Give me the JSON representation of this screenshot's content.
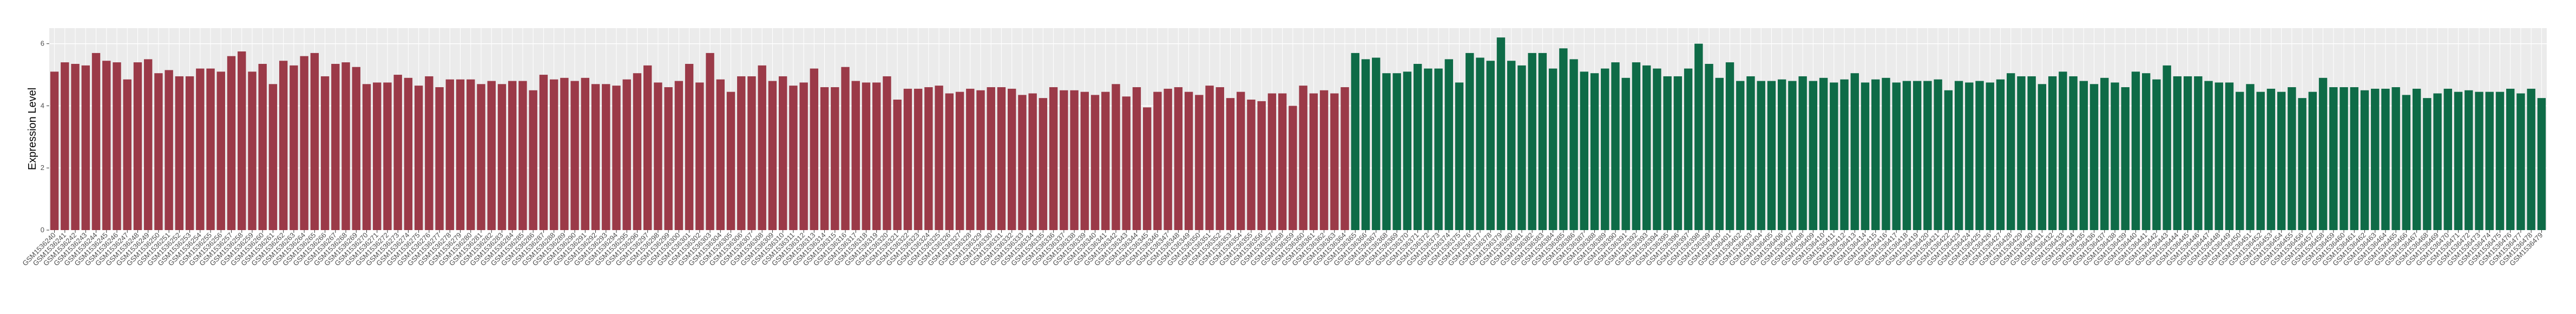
{
  "chart_data": {
    "type": "bar",
    "y_label": "Expression Level",
    "ylim": [
      0,
      6.5
    ],
    "yticks": [
      0,
      2,
      4,
      6
    ],
    "grid": true,
    "categories": [
      "GSM1536240",
      "GSM1536241",
      "GSM1536242",
      "GSM1536243",
      "GSM1536244",
      "GSM1536245",
      "GSM1536246",
      "GSM1536247",
      "GSM1536248",
      "GSM1536249",
      "GSM1536250",
      "GSM1536251",
      "GSM1536252",
      "GSM1536253",
      "GSM1536254",
      "GSM1536255",
      "GSM1536256",
      "GSM1536257",
      "GSM1536258",
      "GSM1536259",
      "GSM1536260",
      "GSM1536261",
      "GSM1536262",
      "GSM1536263",
      "GSM1536264",
      "GSM1536265",
      "GSM1536266",
      "GSM1536267",
      "GSM1536268",
      "GSM1536269",
      "GSM1536270",
      "GSM1536271",
      "GSM1536272",
      "GSM1536273",
      "GSM1536274",
      "GSM1536275",
      "GSM1536276",
      "GSM1536277",
      "GSM1536278",
      "GSM1536279",
      "GSM1536280",
      "GSM1536281",
      "GSM1536282",
      "GSM1536283",
      "GSM1536284",
      "GSM1536285",
      "GSM1536286",
      "GSM1536287",
      "GSM1536288",
      "GSM1536289",
      "GSM1536290",
      "GSM1536291",
      "GSM1536292",
      "GSM1536293",
      "GSM1536294",
      "GSM1536295",
      "GSM1536296",
      "GSM1536297",
      "GSM1536298",
      "GSM1536299",
      "GSM1536300",
      "GSM1536301",
      "GSM1536302",
      "GSM1536303",
      "GSM1536304",
      "GSM1536305",
      "GSM1536306",
      "GSM1536307",
      "GSM1536308",
      "GSM1536309",
      "GSM1536310",
      "GSM1536311",
      "GSM1536312",
      "GSM1536313",
      "GSM1536314",
      "GSM1536315",
      "GSM1536316",
      "GSM1536317",
      "GSM1536318",
      "GSM1536319",
      "GSM1536320",
      "GSM1536321",
      "GSM1536322",
      "GSM1536323",
      "GSM1536324",
      "GSM1536325",
      "GSM1536326",
      "GSM1536327",
      "GSM1536328",
      "GSM1536329",
      "GSM1536330",
      "GSM1536331",
      "GSM1536332",
      "GSM1536333",
      "GSM1536334",
      "GSM1536335",
      "GSM1536336",
      "GSM1536337",
      "GSM1536338",
      "GSM1536339",
      "GSM1536340",
      "GSM1536341",
      "GSM1536342",
      "GSM1536343",
      "GSM1536344",
      "GSM1536345",
      "GSM1536346",
      "GSM1536347",
      "GSM1536348",
      "GSM1536349",
      "GSM1536350",
      "GSM1536351",
      "GSM1536352",
      "GSM1536353",
      "GSM1536354",
      "GSM1536355",
      "GSM1536356",
      "GSM1536357",
      "GSM1536358",
      "GSM1536359",
      "GSM1536360",
      "GSM1536361",
      "GSM1536362",
      "GSM1536363",
      "GSM1536364",
      "GSM1536365",
      "GSM1536366",
      "GSM1536367",
      "GSM1536368",
      "GSM1536369",
      "GSM1536370",
      "GSM1536371",
      "GSM1536372",
      "GSM1536373",
      "GSM1536374",
      "GSM1536375",
      "GSM1536376",
      "GSM1536377",
      "GSM1536378",
      "GSM1536379",
      "GSM1536380",
      "GSM1536381",
      "GSM1536382",
      "GSM1536383",
      "GSM1536384",
      "GSM1536385",
      "GSM1536386",
      "GSM1536387",
      "GSM1536388",
      "GSM1536389",
      "GSM1536390",
      "GSM1536391",
      "GSM1536392",
      "GSM1536393",
      "GSM1536394",
      "GSM1536395",
      "GSM1536396",
      "GSM1536397",
      "GSM1536398",
      "GSM1536399",
      "GSM1536400",
      "GSM1536401",
      "GSM1536402",
      "GSM1536403",
      "GSM1536404",
      "GSM1536405",
      "GSM1536406",
      "GSM1536407",
      "GSM1536408",
      "GSM1536409",
      "GSM1536410",
      "GSM1536411",
      "GSM1536412",
      "GSM1536413",
      "GSM1536414",
      "GSM1536415",
      "GSM1536416",
      "GSM1536417",
      "GSM1536418",
      "GSM1536419",
      "GSM1536420",
      "GSM1536421",
      "GSM1536422",
      "GSM1536423",
      "GSM1536424",
      "GSM1536425",
      "GSM1536426",
      "GSM1536427",
      "GSM1536428",
      "GSM1536429",
      "GSM1536430",
      "GSM1536431",
      "GSM1536432",
      "GSM1536433",
      "GSM1536434",
      "GSM1536435",
      "GSM1536436",
      "GSM1536437",
      "GSM1536438",
      "GSM1536439",
      "GSM1536440",
      "GSM1536441",
      "GSM1536442",
      "GSM1536443",
      "GSM1536444",
      "GSM1536445",
      "GSM1536446",
      "GSM1536447",
      "GSM1536448",
      "GSM1536449",
      "GSM1536450",
      "GSM1536451",
      "GSM1536452",
      "GSM1536453",
      "GSM1536454",
      "GSM1536455",
      "GSM1536456",
      "GSM1536457",
      "GSM1536458",
      "GSM1536459",
      "GSM1536460",
      "GSM1536461",
      "GSM1536462",
      "GSM1536463",
      "GSM1536464",
      "GSM1536465",
      "GSM1536466",
      "GSM1536467",
      "GSM1536468",
      "GSM1536469",
      "GSM1536470",
      "GSM1536471",
      "GSM1536472",
      "GSM1536473",
      "GSM1536474",
      "GSM1536475",
      "GSM1536476",
      "GSM1536477",
      "GSM1536478",
      "GSM1536479"
    ],
    "series": [
      {
        "color": "#9b3a48",
        "values": [
          5.1,
          5.4,
          5.35,
          5.3,
          5.7,
          5.45,
          5.4,
          4.85,
          5.4,
          5.5,
          5.05,
          5.15,
          4.95,
          4.95,
          5.2,
          5.2,
          5.1,
          5.6,
          5.75,
          5.1,
          5.35,
          4.7,
          5.45,
          5.3,
          5.6,
          5.7,
          4.95,
          5.35,
          5.4,
          5.25,
          4.7,
          4.75,
          4.75,
          5.0,
          4.9,
          4.65,
          4.95,
          4.6,
          4.85,
          4.85,
          4.85,
          4.7,
          4.8,
          4.7,
          4.8,
          4.8,
          4.5,
          5.0,
          4.85,
          4.9,
          4.8,
          4.9,
          4.7,
          4.7,
          4.65,
          4.85,
          5.05,
          5.3,
          4.75,
          4.6,
          4.8,
          5.35,
          4.75,
          5.7,
          4.85,
          4.45,
          4.95,
          4.95,
          5.3,
          4.8,
          4.95,
          4.65,
          4.75,
          5.2,
          4.6,
          4.6,
          5.25,
          4.8,
          4.75,
          4.75,
          4.95,
          4.2,
          4.55,
          4.55,
          4.6,
          4.65,
          4.4,
          4.45,
          4.55,
          4.5,
          4.6,
          4.6,
          4.55,
          4.35,
          4.4,
          4.25,
          4.6,
          4.5,
          4.5,
          4.45,
          4.35,
          4.45,
          4.7,
          4.3,
          4.6,
          3.95,
          4.45,
          4.55,
          4.6,
          4.45,
          4.35,
          4.65,
          4.6,
          4.25,
          4.45,
          4.2,
          4.15,
          4.4,
          4.4,
          4.0,
          4.65,
          4.4,
          4.5,
          4.4,
          4.6,
          null,
          null,
          null,
          null,
          null,
          null,
          null,
          null,
          null,
          null,
          null,
          null,
          null,
          null,
          null,
          null,
          null,
          null,
          null,
          null,
          null,
          null,
          null,
          null,
          null,
          null,
          null,
          null,
          null,
          null,
          null,
          null,
          null,
          null,
          null,
          null,
          null,
          null,
          null,
          null,
          null,
          null,
          null,
          null,
          null,
          null,
          null,
          null,
          null,
          null,
          null,
          null,
          null,
          null,
          null,
          null,
          null,
          null,
          null,
          null,
          null,
          null,
          null,
          null,
          null,
          null,
          null,
          null,
          null,
          null,
          null,
          null,
          null,
          null,
          null,
          null,
          null,
          null,
          null,
          null,
          null,
          null,
          null,
          null,
          null,
          null,
          null,
          null,
          null,
          null,
          null,
          null,
          null,
          null,
          null,
          null,
          null,
          null,
          null,
          null,
          null,
          null,
          null,
          null,
          null,
          null,
          null,
          null,
          null,
          null,
          null,
          null,
          null,
          null,
          null
        ]
      },
      {
        "color": "#0e6b47",
        "values": [
          null,
          null,
          null,
          null,
          null,
          null,
          null,
          null,
          null,
          null,
          null,
          null,
          null,
          null,
          null,
          null,
          null,
          null,
          null,
          null,
          null,
          null,
          null,
          null,
          null,
          null,
          null,
          null,
          null,
          null,
          null,
          null,
          null,
          null,
          null,
          null,
          null,
          null,
          null,
          null,
          null,
          null,
          null,
          null,
          null,
          null,
          null,
          null,
          null,
          null,
          null,
          null,
          null,
          null,
          null,
          null,
          null,
          null,
          null,
          null,
          null,
          null,
          null,
          null,
          null,
          null,
          null,
          null,
          null,
          null,
          null,
          null,
          null,
          null,
          null,
          null,
          null,
          null,
          null,
          null,
          null,
          null,
          null,
          null,
          null,
          null,
          null,
          null,
          null,
          null,
          null,
          null,
          null,
          null,
          null,
          null,
          null,
          null,
          null,
          null,
          null,
          null,
          null,
          null,
          null,
          null,
          null,
          null,
          null,
          null,
          null,
          null,
          null,
          null,
          null,
          null,
          null,
          null,
          null,
          null,
          null,
          null,
          null,
          null,
          null,
          5.7,
          5.5,
          5.55,
          5.05,
          5.05,
          5.1,
          5.35,
          5.2,
          5.2,
          5.5,
          4.75,
          5.7,
          5.55,
          5.45,
          6.2,
          5.45,
          5.3,
          5.7,
          5.7,
          5.2,
          5.85,
          5.5,
          5.1,
          5.05,
          5.2,
          5.4,
          4.9,
          5.4,
          5.3,
          5.2,
          4.95,
          4.95,
          5.2,
          6.0,
          5.35,
          4.9,
          5.4,
          4.8,
          4.95,
          4.8,
          4.8,
          4.85,
          4.8,
          4.95,
          4.8,
          4.9,
          4.75,
          4.85,
          5.05,
          4.75,
          4.85,
          4.9,
          4.75,
          4.8,
          4.8,
          4.8,
          4.85,
          4.5,
          4.8,
          4.75,
          4.8,
          4.75,
          4.85,
          5.05,
          4.95,
          4.95,
          4.7,
          4.95,
          5.1,
          4.95,
          4.8,
          4.7,
          4.9,
          4.75,
          4.6,
          5.1,
          5.05,
          4.85,
          5.3,
          4.95,
          4.95,
          4.95,
          4.8,
          4.75,
          4.75,
          4.45,
          4.7,
          4.45,
          4.55,
          4.45,
          4.6,
          4.25,
          4.45,
          4.9,
          4.6,
          4.6,
          4.6,
          4.5,
          4.55,
          4.55,
          4.6,
          4.35,
          4.55,
          4.25,
          4.4,
          4.55,
          4.45,
          4.5,
          4.45,
          4.45,
          4.45,
          4.55,
          4.4,
          4.55,
          4.25
        ]
      }
    ]
  }
}
